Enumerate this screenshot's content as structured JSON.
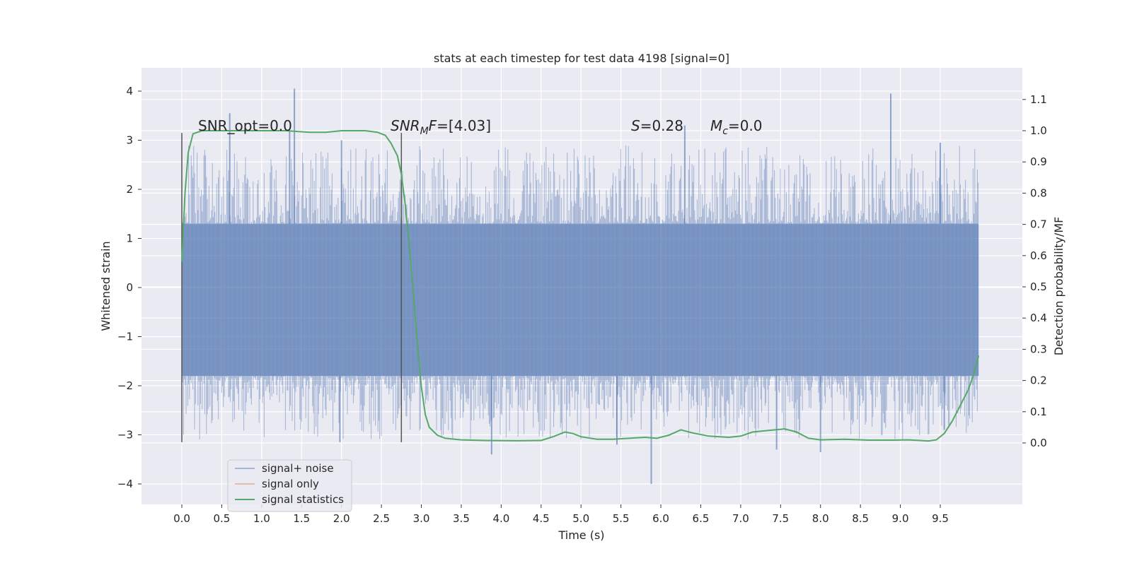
{
  "chart_data": {
    "type": "line",
    "title": "stats at each timestep for test data 4198 [signal=0]",
    "xlabel": "Time (s)",
    "ylabel": "Whitened strain",
    "y2label": "Detection probability/MF",
    "xlim": [
      -0.5,
      10.5
    ],
    "ylim": [
      -4.4,
      4.4
    ],
    "y2lim": [
      -0.2,
      1.2
    ],
    "xticks": [
      0.0,
      0.5,
      1.0,
      1.5,
      2.0,
      2.5,
      3.0,
      3.5,
      4.0,
      4.5,
      5.0,
      5.5,
      6.0,
      6.5,
      7.0,
      7.5,
      8.0,
      8.5,
      9.0,
      9.5
    ],
    "xtick_labels": [
      "0.0",
      "0.5",
      "1.0",
      "1.5",
      "2.0",
      "2.5",
      "3.0",
      "3.5",
      "4.0",
      "4.5",
      "5.0",
      "5.5",
      "6.0",
      "6.5",
      "7.0",
      "7.5",
      "8.0",
      "8.5",
      "9.0",
      "9.5"
    ],
    "yticks": [
      4,
      3,
      2,
      1,
      0,
      -1,
      -2,
      -3,
      -4
    ],
    "ytick_labels": [
      "4",
      "3",
      "2",
      "1",
      "0",
      "−1",
      "−2",
      "−3",
      "−4"
    ],
    "y2ticks": [
      1.1,
      1.0,
      0.9,
      0.8,
      0.7,
      0.6,
      0.5,
      0.4,
      0.3,
      0.2,
      0.1,
      0.0
    ],
    "y2tick_labels": [
      "1.1",
      "1.0",
      "0.9",
      "0.8",
      "0.7",
      "0.6",
      "0.5",
      "0.4",
      "0.3",
      "0.2",
      "0.1",
      "0.0"
    ],
    "grid": true,
    "legend_position": "lower-left",
    "legend": [
      "signal+ noise",
      "signal only",
      "signal statistics"
    ],
    "annotations": {
      "snr_opt": "SNR_opt=0.0",
      "snr_mf_label": "SNR",
      "snr_mf_sub": "M",
      "snr_mf_suffix": "F",
      "snr_mf_value": "=[4.03]",
      "s_symbol": "S",
      "s_value": "=0.28",
      "mc_symbol": "M",
      "mc_sub": "c",
      "mc_value": "=0.0"
    },
    "vertical_markers_x": [
      0.0,
      2.75
    ],
    "noise_envelope": {
      "x_range": [
        0.0,
        9.98
      ],
      "dense_band": [
        -1.8,
        1.3
      ],
      "upper_spikes": [
        [
          1.41,
          4.05
        ],
        [
          0.6,
          3.55
        ],
        [
          8.88,
          3.95
        ],
        [
          1.35,
          3.2
        ],
        [
          2.0,
          3.0
        ],
        [
          6.3,
          3.3
        ],
        [
          9.5,
          2.95
        ]
      ],
      "lower_spikes": [
        [
          5.88,
          -4.0
        ],
        [
          3.88,
          -3.4
        ],
        [
          7.45,
          -3.3
        ],
        [
          8.0,
          -3.35
        ],
        [
          1.98,
          -3.15
        ],
        [
          9.55,
          -2.9
        ],
        [
          5.45,
          -3.2
        ]
      ]
    },
    "series": [
      {
        "name": "signal statistics",
        "color": "#55a868",
        "axis": "right",
        "x": [
          0.0,
          0.04,
          0.08,
          0.14,
          0.25,
          0.5,
          1.0,
          1.3,
          1.6,
          1.8,
          2.0,
          2.3,
          2.45,
          2.55,
          2.62,
          2.7,
          2.75,
          2.8,
          2.85,
          2.9,
          2.95,
          3.0,
          3.05,
          3.1,
          3.2,
          3.3,
          3.5,
          3.8,
          4.2,
          4.5,
          4.65,
          4.8,
          4.9,
          5.0,
          5.2,
          5.4,
          5.6,
          5.8,
          5.95,
          6.1,
          6.25,
          6.4,
          6.6,
          6.85,
          7.0,
          7.15,
          7.35,
          7.55,
          7.7,
          7.85,
          8.0,
          8.3,
          8.6,
          8.9,
          9.1,
          9.25,
          9.35,
          9.45,
          9.55,
          9.65,
          9.75,
          9.85,
          9.92,
          9.98
        ],
        "values": [
          0.58,
          0.8,
          0.93,
          0.99,
          1.0,
          1.0,
          1.0,
          1.0,
          0.995,
          0.995,
          1.0,
          1.0,
          0.995,
          0.985,
          0.96,
          0.92,
          0.86,
          0.76,
          0.63,
          0.48,
          0.32,
          0.18,
          0.09,
          0.05,
          0.025,
          0.015,
          0.01,
          0.008,
          0.007,
          0.008,
          0.02,
          0.035,
          0.03,
          0.02,
          0.012,
          0.012,
          0.015,
          0.018,
          0.015,
          0.025,
          0.042,
          0.032,
          0.022,
          0.018,
          0.022,
          0.035,
          0.04,
          0.045,
          0.035,
          0.015,
          0.01,
          0.012,
          0.009,
          0.009,
          0.01,
          0.008,
          0.006,
          0.01,
          0.03,
          0.07,
          0.12,
          0.17,
          0.22,
          0.28
        ]
      }
    ]
  },
  "colors": {
    "noise": "#4c72b0",
    "signal_only": "#dd8452",
    "stats": "#55a868",
    "plot_bg": "#eaeaf2",
    "grid": "#ffffff",
    "marker": "#555555"
  }
}
